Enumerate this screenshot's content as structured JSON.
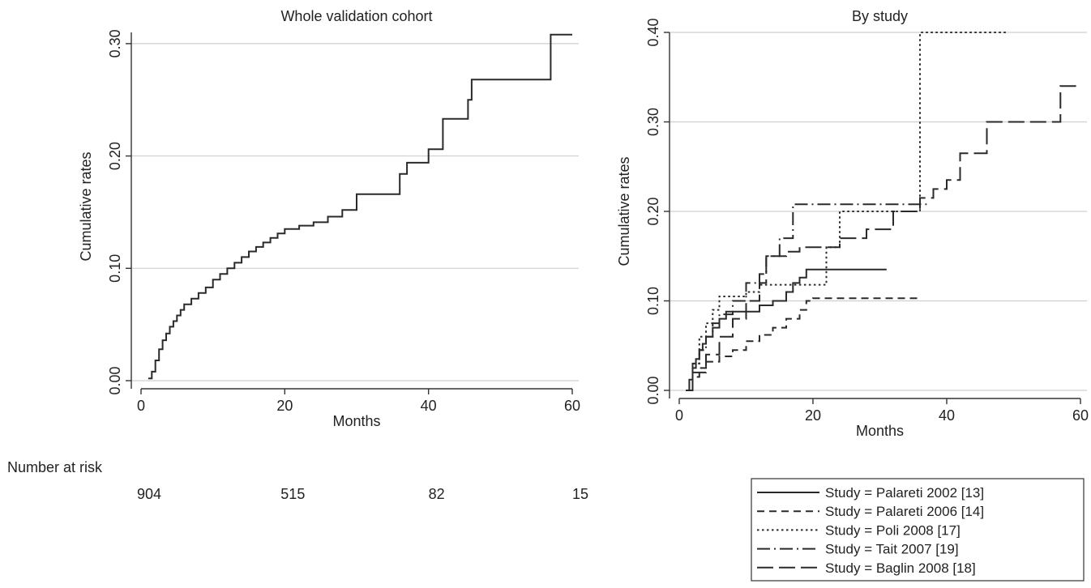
{
  "chart_data": [
    {
      "type": "line",
      "title": "Whole validation cohort",
      "xlabel": "Months",
      "ylabel": "Cumulative rates",
      "xlim": [
        0,
        60
      ],
      "ylim": [
        0,
        0.31
      ],
      "xticks": [
        "0",
        "20",
        "40",
        "60"
      ],
      "yticks": [
        "0.00",
        "0.10",
        "0.20",
        "0.30"
      ],
      "grid": "horizontal",
      "number_at_risk": {
        "label": "Number at risk",
        "x": [
          0,
          20,
          40,
          60
        ],
        "values": [
          "904",
          "515",
          "82",
          "15"
        ]
      },
      "series": [
        {
          "style": "solid",
          "x": [
            1,
            1.5,
            2,
            2.5,
            3,
            3.5,
            4,
            4.5,
            5,
            5.5,
            6,
            7,
            8,
            9,
            10,
            11,
            12,
            13,
            14,
            15,
            16,
            17,
            18,
            19,
            20,
            22,
            24,
            26,
            28,
            30,
            32,
            34,
            36,
            37,
            38,
            40,
            41,
            42,
            44,
            45.5,
            46,
            48,
            50,
            52,
            54,
            56,
            57,
            60
          ],
          "y": [
            0.002,
            0.008,
            0.018,
            0.028,
            0.036,
            0.042,
            0.048,
            0.053,
            0.058,
            0.063,
            0.068,
            0.073,
            0.078,
            0.083,
            0.09,
            0.095,
            0.1,
            0.105,
            0.11,
            0.115,
            0.119,
            0.123,
            0.127,
            0.131,
            0.135,
            0.138,
            0.141,
            0.146,
            0.152,
            0.166,
            0.166,
            0.166,
            0.184,
            0.194,
            0.194,
            0.206,
            0.206,
            0.233,
            0.233,
            0.25,
            0.268,
            0.268,
            0.268,
            0.268,
            0.268,
            0.268,
            0.308,
            0.308
          ]
        }
      ]
    },
    {
      "type": "line",
      "title": "By study",
      "xlabel": "Months",
      "ylabel": "Cumulative rates",
      "xlim": [
        0,
        60
      ],
      "ylim": [
        0,
        0.4
      ],
      "xticks": [
        "0",
        "20",
        "40",
        "60"
      ],
      "yticks": [
        "0.00",
        "0.10",
        "0.20",
        "0.30",
        "0.40"
      ],
      "grid": "horizontal",
      "legend_position": "bottom-right",
      "series": [
        {
          "name": "Study = Palareti 2002 [13]",
          "style": "solid",
          "x": [
            1,
            1.5,
            2,
            2.5,
            3,
            3.5,
            4,
            5,
            6,
            7,
            8,
            10,
            12,
            14,
            16,
            17,
            18,
            19,
            31
          ],
          "y": [
            0,
            0.012,
            0.025,
            0.035,
            0.045,
            0.052,
            0.06,
            0.07,
            0.08,
            0.088,
            0.088,
            0.088,
            0.095,
            0.1,
            0.11,
            0.12,
            0.126,
            0.135,
            0.135
          ]
        },
        {
          "name": "Study = Palareti 2006 [14]",
          "style": "dashed",
          "x": [
            1,
            2,
            3,
            4,
            6,
            8,
            10,
            12,
            14,
            16,
            18,
            19,
            20,
            36
          ],
          "y": [
            0,
            0.015,
            0.025,
            0.032,
            0.038,
            0.045,
            0.055,
            0.062,
            0.07,
            0.08,
            0.09,
            0.1,
            0.103,
            0.103
          ]
        },
        {
          "name": "Study = Poli 2008 [17]",
          "style": "dotted",
          "x": [
            1,
            2,
            3,
            4,
            5,
            6,
            8,
            10,
            12,
            14,
            17,
            22,
            24,
            36,
            49
          ],
          "y": [
            0,
            0.03,
            0.06,
            0.075,
            0.09,
            0.105,
            0.105,
            0.11,
            0.118,
            0.118,
            0.118,
            0.16,
            0.2,
            0.4,
            0.4
          ]
        },
        {
          "name": "Study = Tait 2007 [19]",
          "style": "dashdot",
          "x": [
            1,
            2,
            3,
            4,
            5,
            6,
            8,
            10,
            12,
            13,
            15,
            17,
            37
          ],
          "y": [
            0,
            0.03,
            0.045,
            0.06,
            0.075,
            0.085,
            0.1,
            0.12,
            0.13,
            0.15,
            0.17,
            0.208,
            0.208
          ]
        },
        {
          "name": "Study = Baglin 2008 [18]",
          "style": "longdash",
          "x": [
            1,
            2,
            4,
            6,
            8,
            10,
            12,
            13,
            16,
            18,
            20,
            24,
            28,
            32,
            36,
            38,
            40,
            42,
            44,
            46,
            48,
            52,
            57,
            60
          ],
          "y": [
            0,
            0.02,
            0.04,
            0.06,
            0.08,
            0.1,
            0.12,
            0.15,
            0.155,
            0.16,
            0.16,
            0.17,
            0.18,
            0.2,
            0.215,
            0.225,
            0.235,
            0.265,
            0.265,
            0.3,
            0.3,
            0.3,
            0.34,
            0.34
          ]
        }
      ]
    }
  ]
}
